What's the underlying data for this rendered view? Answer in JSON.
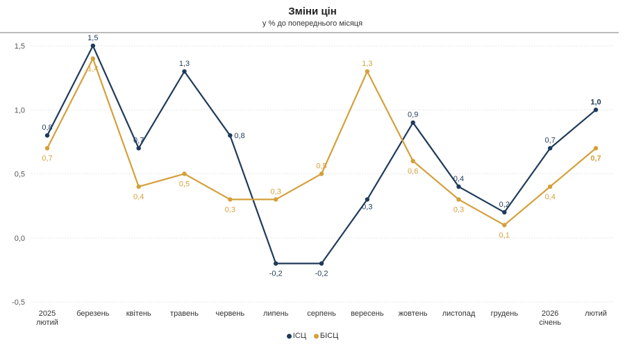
{
  "chart_data": {
    "type": "line",
    "title": "Зміни цін",
    "subtitle": "у % до попереднього місяця",
    "categories": [
      [
        "2025",
        "лютий"
      ],
      [
        "березень"
      ],
      [
        "квітень"
      ],
      [
        "травень"
      ],
      [
        "червень"
      ],
      [
        "липень"
      ],
      [
        "серпень"
      ],
      [
        "вересень"
      ],
      [
        "жовтень"
      ],
      [
        "листопад"
      ],
      [
        "грудень"
      ],
      [
        "2026",
        "січень"
      ],
      [
        "лютий"
      ]
    ],
    "y_ticks": [
      "1,5",
      "1,0",
      "0,5",
      "0,0",
      "-0,5"
    ],
    "y_tick_values": [
      1.5,
      1.0,
      0.5,
      0.0,
      -0.5
    ],
    "ylim": [
      -0.5,
      1.5
    ],
    "series": [
      {
        "name": "ІСЦ",
        "color": "#1f3a5a",
        "values": [
          0.8,
          1.5,
          0.7,
          1.3,
          0.8,
          -0.2,
          -0.2,
          0.3,
          0.9,
          0.4,
          0.2,
          0.7,
          1.0
        ],
        "labels": [
          "0,8",
          "1,5",
          "0,7",
          "1,3",
          "0,8",
          "-0,2",
          "-0,2",
          "0,3",
          "0,9",
          "0,4",
          "0,2",
          "0,7",
          "1,0"
        ]
      },
      {
        "name": "БІСЦ",
        "color": "#d4a03a",
        "values": [
          0.7,
          1.4,
          0.4,
          0.5,
          0.3,
          0.3,
          0.5,
          1.3,
          0.6,
          0.3,
          0.1,
          0.4,
          0.7
        ],
        "labels": [
          "0,7",
          "1,4",
          "0,4",
          "0,5",
          "0,3",
          "0,3",
          "0,5",
          "1,3",
          "0,6",
          "0,3",
          "0,1",
          "0,4",
          "0,7"
        ]
      }
    ],
    "legend_position": "bottom-center"
  }
}
